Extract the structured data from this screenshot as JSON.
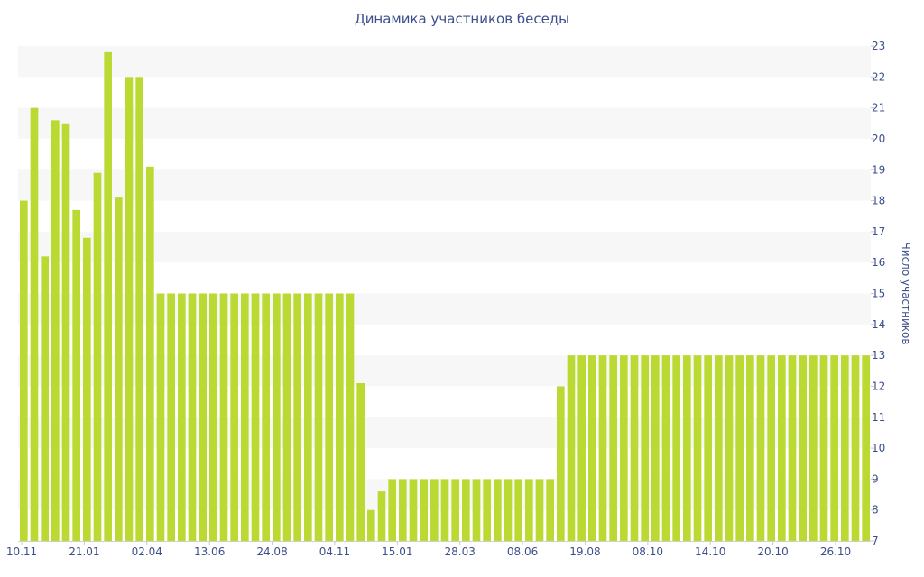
{
  "chart_data": {
    "type": "bar",
    "title": "Динамика участников беседы",
    "ylabel": "Число участников",
    "ylim": [
      7,
      23
    ],
    "yticks": [
      7,
      8,
      9,
      10,
      11,
      12,
      13,
      14,
      15,
      16,
      17,
      18,
      19,
      20,
      21,
      22,
      23
    ],
    "y_axis_side": "right",
    "grid": "alternating horizontal bands",
    "bar_color": "#bada33",
    "band_color": "#f7f7f7",
    "text_color": "#3d4f8c",
    "x_tick_labels": [
      "10.11",
      "21.01",
      "02.04",
      "13.06",
      "24.08",
      "04.11",
      "15.01",
      "28.03",
      "08.06",
      "19.08",
      "08.10",
      "14.10",
      "20.10",
      "26.10"
    ],
    "values": [
      18,
      21,
      16.2,
      20.6,
      20.5,
      17.7,
      16.8,
      18.9,
      22.8,
      18.1,
      22,
      22,
      19.1,
      15,
      15,
      15,
      15,
      15,
      15,
      15,
      15,
      15,
      15,
      15,
      15,
      15,
      15,
      15,
      15,
      15,
      15,
      15,
      12.1,
      8,
      8.6,
      9,
      9,
      9,
      9,
      9,
      9,
      9,
      9,
      9,
      9,
      9,
      9,
      9,
      9,
      9,
      9,
      12,
      13,
      13,
      13,
      13,
      13,
      13,
      13,
      13,
      13,
      13,
      13,
      13,
      13,
      13,
      13,
      13,
      13,
      13,
      13,
      13,
      13,
      13,
      13,
      13,
      13,
      13,
      13,
      13,
      13
    ]
  }
}
